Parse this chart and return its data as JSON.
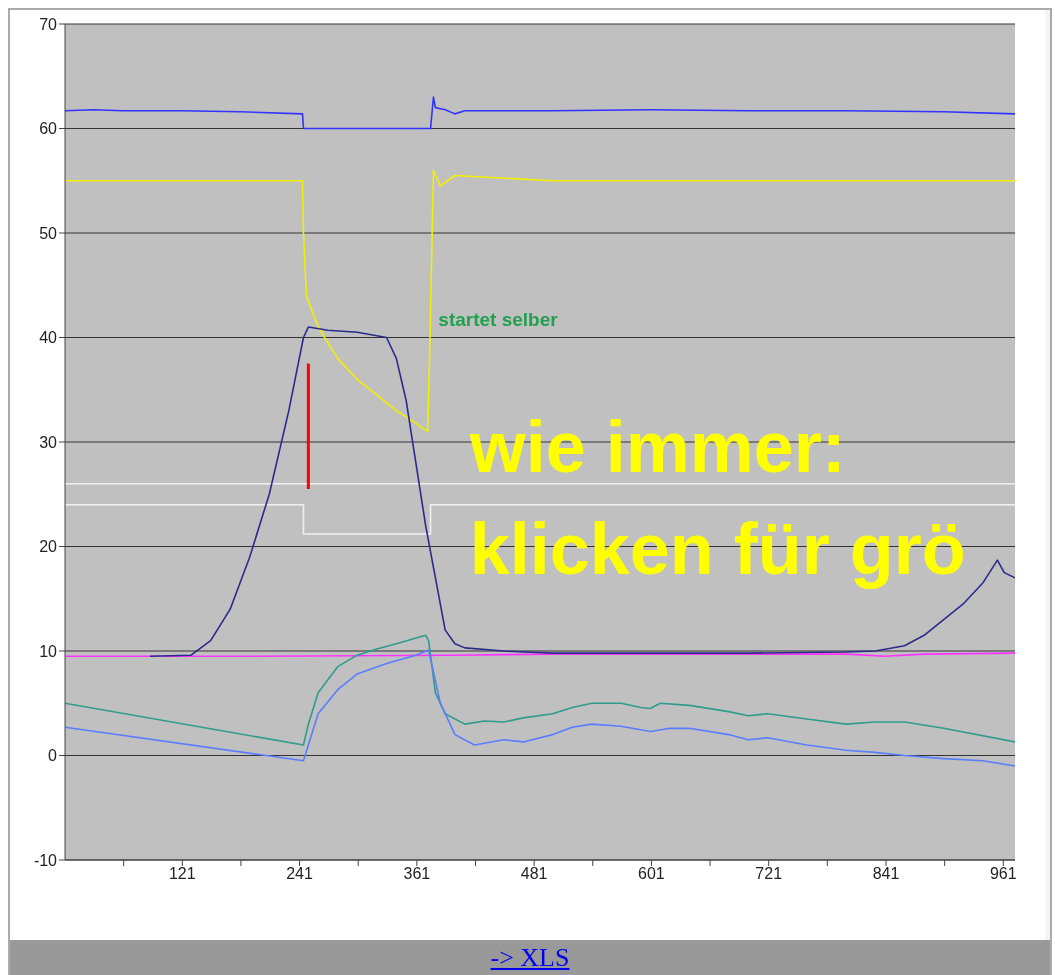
{
  "chart_data": {
    "type": "line",
    "xlim": [
      1,
      973
    ],
    "xticks": [
      {
        "value": 61,
        "label": null
      },
      121,
      {
        "value": 181,
        "label": null
      },
      241,
      {
        "value": 301,
        "label": null
      },
      361,
      {
        "value": 421,
        "label": null
      },
      481,
      {
        "value": 541,
        "label": null
      },
      601,
      {
        "value": 661,
        "label": null
      },
      721,
      {
        "value": 781,
        "label": null
      },
      841,
      {
        "value": 901,
        "label": null
      },
      961
    ],
    "ylim": [
      -10,
      70
    ],
    "yticks": [
      -10,
      0,
      10,
      20,
      30,
      40,
      50,
      60,
      70
    ],
    "grid": "y",
    "marker": "none",
    "line_style": "solid",
    "annotations": [
      "startet selber",
      "wie immer:",
      "klicken für grö",
      "-> XLS"
    ],
    "series": [
      {
        "color": "#3333ff",
        "x": [
          1,
          30,
          60,
          120,
          180,
          244,
          245,
          375,
          378,
          380,
          390,
          400,
          410,
          420,
          500,
          600,
          700,
          800,
          900,
          973
        ],
        "values": [
          61.7,
          61.8,
          61.7,
          61.7,
          61.6,
          61.4,
          60,
          60,
          63,
          62,
          61.8,
          61.4,
          61.7,
          61.7,
          61.7,
          61.8,
          61.7,
          61.7,
          61.6,
          61.4
        ]
      },
      {
        "color": "#f0f000",
        "x": [
          1,
          100,
          200,
          244,
          245,
          248,
          252,
          260,
          280,
          300,
          320,
          340,
          360,
          372,
          374,
          378,
          385,
          400,
          500,
          600,
          700,
          800,
          900,
          973
        ],
        "values": [
          55,
          55,
          55,
          55,
          50,
          44,
          43,
          41,
          38,
          36,
          34.5,
          33,
          31.8,
          31,
          38,
          56,
          54.5,
          55.5,
          55,
          55,
          55,
          55,
          55,
          55
        ]
      },
      {
        "color": "#f0f0f0",
        "x": [
          1,
          973
        ],
        "values": [
          26,
          26
        ]
      },
      {
        "color": "#f0f0f0",
        "x": [
          1,
          245,
          245,
          375,
          375,
          973
        ],
        "values": [
          24,
          24,
          21.2,
          21.2,
          24,
          24
        ]
      },
      {
        "color": "#ff33ff",
        "x": [
          1,
          200,
          400,
          500,
          700,
          800,
          840,
          880,
          973
        ],
        "values": [
          9.5,
          9.5,
          9.6,
          9.7,
          9.7,
          9.7,
          9.5,
          9.7,
          9.8
        ]
      },
      {
        "color": "#2b2b8c",
        "x": [
          88,
          130,
          150,
          170,
          190,
          210,
          230,
          245,
          250,
          270,
          300,
          330,
          340,
          350,
          360,
          370,
          380,
          390,
          400,
          410,
          450,
          500,
          600,
          700,
          800,
          830,
          860,
          880,
          900,
          920,
          940,
          955,
          962,
          973
        ],
        "values": [
          9.5,
          9.6,
          11,
          14,
          19,
          25,
          33,
          40,
          41,
          40.7,
          40.5,
          40,
          38,
          34,
          28,
          22,
          17,
          12,
          10.7,
          10.3,
          10,
          9.8,
          9.8,
          9.8,
          9.9,
          10,
          10.5,
          11.5,
          13,
          14.5,
          16.5,
          18.7,
          17.5,
          17
        ]
      },
      {
        "color": "#2f9c8c",
        "x": [
          1,
          245,
          250,
          260,
          280,
          300,
          320,
          340,
          370,
          373,
          380,
          390,
          410,
          430,
          450,
          470,
          500,
          520,
          540,
          570,
          590,
          600,
          610,
          640,
          680,
          700,
          720,
          760,
          800,
          830,
          860,
          900,
          973
        ],
        "values": [
          5,
          1,
          3,
          6,
          8.5,
          9.6,
          10.2,
          10.7,
          11.5,
          11,
          6,
          4,
          3,
          3.3,
          3.2,
          3.6,
          4,
          4.6,
          5,
          5,
          4.6,
          4.5,
          5,
          4.8,
          4.2,
          3.8,
          4,
          3.5,
          3,
          3.2,
          3.2,
          2.6,
          1.3
        ]
      },
      {
        "color": "#5a7dff",
        "x": [
          1,
          245,
          250,
          260,
          280,
          300,
          330,
          360,
          373,
          378,
          385,
          400,
          420,
          450,
          470,
          500,
          520,
          540,
          570,
          600,
          620,
          640,
          680,
          700,
          720,
          760,
          800,
          830,
          860,
          900,
          940,
          973
        ],
        "values": [
          2.7,
          -0.5,
          1,
          4,
          6.3,
          7.8,
          8.8,
          9.6,
          10.1,
          8,
          5,
          2,
          1,
          1.5,
          1.3,
          2,
          2.7,
          3,
          2.8,
          2.3,
          2.6,
          2.6,
          2,
          1.5,
          1.7,
          1,
          0.5,
          0.3,
          0,
          -0.3,
          -0.5,
          -1
        ]
      },
      {
        "color": "#ff0000",
        "x": [
          250,
          250
        ],
        "values": [
          25.5,
          37.5
        ]
      }
    ]
  }
}
